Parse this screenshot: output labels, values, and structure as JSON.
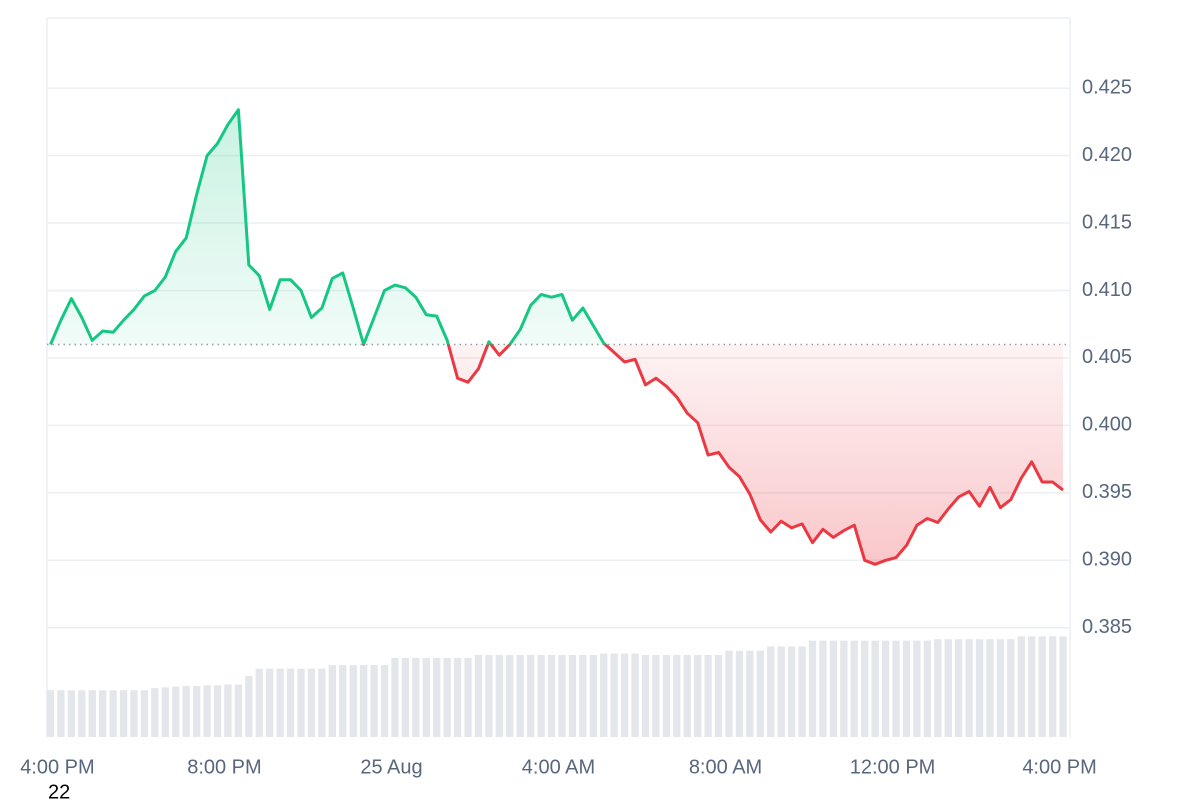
{
  "chart_data": {
    "type": "line",
    "annotation": "22",
    "baseline": 0.406,
    "up_color": "#16c784",
    "down_color": "#ea3943",
    "volume_color": "#e3e6ea",
    "grid": true,
    "x": [
      "24 Aug 15:50",
      "24 Aug 16:05",
      "24 Aug 16:20",
      "24 Aug 16:35",
      "24 Aug 16:50",
      "24 Aug 17:05",
      "24 Aug 17:20",
      "24 Aug 17:35",
      "24 Aug 17:50",
      "24 Aug 18:05",
      "24 Aug 18:20",
      "24 Aug 18:35",
      "24 Aug 18:50",
      "24 Aug 19:05",
      "24 Aug 19:20",
      "24 Aug 19:35",
      "24 Aug 19:50",
      "24 Aug 20:05",
      "24 Aug 20:20",
      "24 Aug 20:35",
      "24 Aug 20:50",
      "24 Aug 21:05",
      "24 Aug 21:20",
      "24 Aug 21:35",
      "24 Aug 21:50",
      "24 Aug 22:05",
      "24 Aug 22:20",
      "24 Aug 22:35",
      "24 Aug 22:50",
      "24 Aug 23:05",
      "24 Aug 23:20",
      "24 Aug 23:35",
      "24 Aug 23:50",
      "25 Aug 00:05",
      "25 Aug 00:20",
      "25 Aug 00:35",
      "25 Aug 00:50",
      "25 Aug 01:05",
      "25 Aug 01:20",
      "25 Aug 01:35",
      "25 Aug 01:50",
      "25 Aug 02:05",
      "25 Aug 02:20",
      "25 Aug 02:35",
      "25 Aug 02:50",
      "25 Aug 03:05",
      "25 Aug 03:20",
      "25 Aug 03:35",
      "25 Aug 03:50",
      "25 Aug 04:05",
      "25 Aug 04:20",
      "25 Aug 04:35",
      "25 Aug 04:50",
      "25 Aug 05:05",
      "25 Aug 05:20",
      "25 Aug 05:35",
      "25 Aug 05:50",
      "25 Aug 06:05",
      "25 Aug 06:20",
      "25 Aug 06:35",
      "25 Aug 06:50",
      "25 Aug 07:05",
      "25 Aug 07:20",
      "25 Aug 07:35",
      "25 Aug 07:50",
      "25 Aug 08:05",
      "25 Aug 08:20",
      "25 Aug 08:35",
      "25 Aug 08:50",
      "25 Aug 09:05",
      "25 Aug 09:20",
      "25 Aug 09:35",
      "25 Aug 09:50",
      "25 Aug 10:05",
      "25 Aug 10:20",
      "25 Aug 10:35",
      "25 Aug 10:50",
      "25 Aug 11:05",
      "25 Aug 11:20",
      "25 Aug 11:35",
      "25 Aug 11:50",
      "25 Aug 12:05",
      "25 Aug 12:20",
      "25 Aug 12:35",
      "25 Aug 12:50",
      "25 Aug 13:05",
      "25 Aug 13:20",
      "25 Aug 13:35",
      "25 Aug 13:50",
      "25 Aug 14:05",
      "25 Aug 14:20",
      "25 Aug 14:35",
      "25 Aug 14:50",
      "25 Aug 15:05",
      "25 Aug 15:20",
      "25 Aug 15:35",
      "25 Aug 15:50",
      "25 Aug 16:05"
    ],
    "values": [
      0.406,
      0.4078,
      0.4094,
      0.408,
      0.4063,
      0.407,
      0.4069,
      0.4078,
      0.4086,
      0.4096,
      0.41,
      0.411,
      0.4129,
      0.4139,
      0.4171,
      0.42,
      0.4209,
      0.4223,
      0.4234,
      0.4119,
      0.4111,
      0.4086,
      0.4108,
      0.4108,
      0.41,
      0.408,
      0.4087,
      0.4109,
      0.4113,
      0.4087,
      0.406,
      0.408,
      0.41,
      0.4104,
      0.4102,
      0.4095,
      0.4082,
      0.4081,
      0.4063,
      0.4035,
      0.4032,
      0.4042,
      0.4062,
      0.4052,
      0.406,
      0.4071,
      0.4089,
      0.4097,
      0.4095,
      0.4097,
      0.4078,
      0.4087,
      0.4074,
      0.4061,
      0.4054,
      0.4047,
      0.4049,
      0.403,
      0.4035,
      0.4029,
      0.4021,
      0.4009,
      0.4002,
      0.3978,
      0.398,
      0.3969,
      0.3962,
      0.3949,
      0.393,
      0.3921,
      0.3929,
      0.3924,
      0.3927,
      0.3913,
      0.3923,
      0.3917,
      0.3922,
      0.3926,
      0.39,
      0.3897,
      0.39,
      0.3902,
      0.3911,
      0.3926,
      0.3931,
      0.3928,
      0.3938,
      0.3947,
      0.3951,
      0.394,
      0.3954,
      0.3939,
      0.3945,
      0.3961,
      0.3973,
      0.3958,
      0.3958,
      0.3952
    ],
    "volume": [
      6.5,
      6.5,
      6.5,
      6.5,
      6.5,
      6.5,
      6.5,
      6.5,
      6.5,
      6.5,
      6.8,
      6.9,
      7.0,
      7.1,
      7.1,
      7.2,
      7.2,
      7.3,
      7.3,
      8.5,
      9.5,
      9.5,
      9.5,
      9.5,
      9.5,
      9.5,
      9.5,
      10.0,
      10.0,
      10.0,
      10.0,
      10.0,
      10.0,
      11.0,
      11.0,
      11.0,
      11.0,
      11.0,
      11.0,
      11.0,
      11.0,
      11.4,
      11.4,
      11.4,
      11.4,
      11.4,
      11.4,
      11.4,
      11.4,
      11.4,
      11.4,
      11.4,
      11.4,
      11.6,
      11.6,
      11.6,
      11.6,
      11.4,
      11.4,
      11.4,
      11.4,
      11.4,
      11.4,
      11.4,
      11.4,
      12.0,
      12.0,
      12.0,
      12.0,
      12.6,
      12.6,
      12.6,
      12.6,
      13.4,
      13.4,
      13.4,
      13.4,
      13.4,
      13.4,
      13.4,
      13.4,
      13.4,
      13.4,
      13.4,
      13.4,
      13.6,
      13.6,
      13.6,
      13.6,
      13.6,
      13.6,
      13.6,
      13.6,
      14.0,
      14.0,
      14.0,
      14.0,
      14.0
    ],
    "volume_lim": [
      0,
      100
    ],
    "xlim": [
      "24 Aug 15:45",
      "25 Aug 16:15"
    ],
    "xticks": [
      {
        "value": "24 Aug 16:00",
        "label": "4:00 PM"
      },
      {
        "value": "24 Aug 20:00",
        "label": "8:00 PM"
      },
      {
        "value": "25 Aug 00:00",
        "label": "25 Aug"
      },
      {
        "value": "25 Aug 04:00",
        "label": "4:00 AM"
      },
      {
        "value": "25 Aug 08:00",
        "label": "8:00 AM"
      },
      {
        "value": "25 Aug 12:00",
        "label": "12:00 PM"
      },
      {
        "value": "25 Aug 16:00",
        "label": "4:00 PM"
      }
    ],
    "ylim": [
      0.3769,
      0.4302
    ],
    "yticks": [
      0.385,
      {
        "value": 0.39,
        "label": "0.390"
      },
      0.395,
      {
        "value": 0.4,
        "label": "0.400"
      },
      0.405,
      {
        "value": 0.41,
        "label": "0.410"
      },
      0.415,
      {
        "value": 0.42,
        "label": "0.420"
      },
      0.425
    ]
  }
}
